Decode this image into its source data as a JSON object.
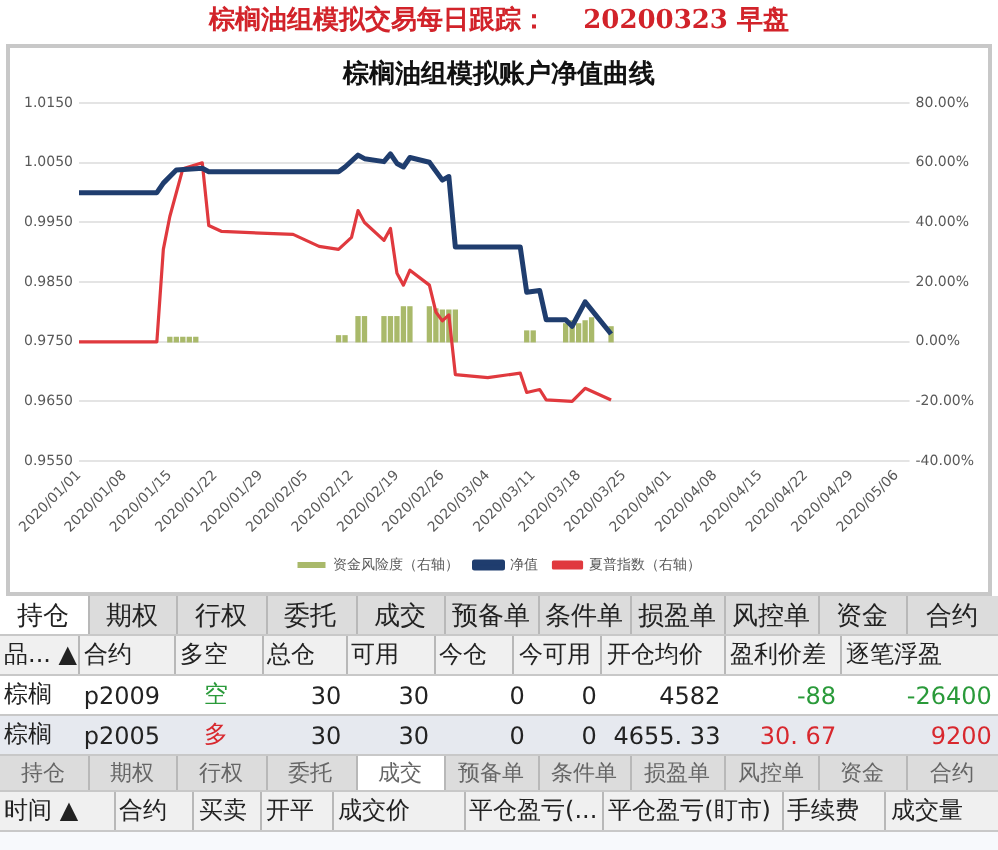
{
  "chart_data": [
    {
      "type": "line",
      "title": "棕榈油组模拟交易每日跟踪：    20200323 早盘",
      "subtitle": "棕榈油组模拟账户净值曲线",
      "xlim": [
        "2020-01-01",
        "2020-05-08"
      ],
      "xticks": [
        {
          "value": "2020-01-01",
          "label": "2020/01/01"
        },
        {
          "value": "2020-01-08",
          "label": "2020/01/08"
        },
        {
          "value": "2020-01-15",
          "label": "2020/01/15"
        },
        {
          "value": "2020-01-22",
          "label": "2020/01/22"
        },
        {
          "value": "2020-01-29",
          "label": "2020/01/29"
        },
        {
          "value": "2020-02-05",
          "label": "2020/02/05"
        },
        {
          "value": "2020-02-12",
          "label": "2020/02/12"
        },
        {
          "value": "2020-02-19",
          "label": "2020/02/19"
        },
        {
          "value": "2020-02-26",
          "label": "2020/02/26"
        },
        {
          "value": "2020-03-04",
          "label": "2020/03/04"
        },
        {
          "value": "2020-03-11",
          "label": "2020/03/11"
        },
        {
          "value": "2020-03-18",
          "label": "2020/03/18"
        },
        {
          "value": "2020-03-25",
          "label": "2020/03/25"
        },
        {
          "value": "2020-04-01",
          "label": "2020/04/01"
        },
        {
          "value": "2020-04-08",
          "label": "2020/04/08"
        },
        {
          "value": "2020-04-15",
          "label": "2020/04/15"
        },
        {
          "value": "2020-04-22",
          "label": "2020/04/22"
        },
        {
          "value": "2020-04-29",
          "label": "2020/04/29"
        },
        {
          "value": "2020-05-06",
          "label": "2020/05/06"
        }
      ],
      "ylim": [
        0.955,
        1.015
      ],
      "yticks": [
        {
          "value": 0.955,
          "label": "0.9550"
        },
        {
          "value": 0.965,
          "label": "0.9650"
        },
        {
          "value": 0.975,
          "label": "0.9750"
        },
        {
          "value": 0.985,
          "label": "0.9850"
        },
        {
          "value": 0.995,
          "label": "0.9950"
        },
        {
          "value": 1.005,
          "label": "1.0050"
        },
        {
          "value": 1.015,
          "label": "1.0150"
        }
      ],
      "y2lim": [
        -40,
        80
      ],
      "y2ticks": [
        {
          "value": -40,
          "label": "-40.00%"
        },
        {
          "value": -20,
          "label": "-20.00%"
        },
        {
          "value": 0,
          "label": "0.00%"
        },
        {
          "value": 20,
          "label": "20.00%"
        },
        {
          "value": 40,
          "label": "40.00%"
        },
        {
          "value": 60,
          "label": "60.00%"
        },
        {
          "value": 80,
          "label": "80.00%"
        }
      ],
      "grid": "y",
      "legend": "bottom",
      "marker": "none",
      "series": [
        {
          "type": "bar",
          "name": "资金风险度（右轴）",
          "axis": "y2",
          "color": "#a9b96a",
          "x": [
            "2020-01-15",
            "2020-01-16",
            "2020-01-17",
            "2020-01-18",
            "2020-01-19",
            "2020-02-10",
            "2020-02-11",
            "2020-02-13",
            "2020-02-14",
            "2020-02-17",
            "2020-02-18",
            "2020-02-19",
            "2020-02-20",
            "2020-02-21",
            "2020-02-24",
            "2020-02-25",
            "2020-02-26",
            "2020-02-27",
            "2020-02-28",
            "2020-03-10",
            "2020-03-11",
            "2020-03-16",
            "2020-03-17",
            "2020-03-18",
            "2020-03-19",
            "2020-03-20",
            "2020-03-23"
          ],
          "values": [
            1.5,
            1.5,
            1.5,
            1.5,
            1.5,
            2,
            2,
            8.4,
            8.4,
            8.4,
            8.4,
            8.4,
            11.7,
            11.7,
            11.7,
            11,
            10.6,
            10.6,
            10.6,
            3.6,
            3.6,
            6,
            7,
            6,
            7,
            8,
            5
          ]
        },
        {
          "type": "line",
          "name": "净值",
          "axis": "y",
          "color": "#1f3d6e",
          "x": [
            "2020-01-01",
            "2020-01-13",
            "2020-01-14",
            "2020-01-16",
            "2020-01-20",
            "2020-01-21",
            "2020-02-10",
            "2020-02-11",
            "2020-02-13",
            "2020-02-14",
            "2020-02-17",
            "2020-02-18",
            "2020-02-19",
            "2020-02-20",
            "2020-02-21",
            "2020-02-24",
            "2020-02-26",
            "2020-02-27",
            "2020-02-28",
            "2020-03-09",
            "2020-03-10",
            "2020-03-12",
            "2020-03-13",
            "2020-03-16",
            "2020-03-17",
            "2020-03-19",
            "2020-03-23"
          ],
          "values": [
            1.0,
            1.0,
            1.0016,
            1.0038,
            1.0041,
            1.0035,
            1.0035,
            1.0043,
            1.0063,
            1.0057,
            1.0052,
            1.0065,
            1.0049,
            1.0043,
            1.0059,
            1.0051,
            1.0021,
            1.0027,
            0.9909,
            0.9909,
            0.9833,
            0.9836,
            0.9787,
            0.9787,
            0.9776,
            0.9817,
            0.9763
          ]
        },
        {
          "type": "line",
          "name": "夏普指数（右轴）",
          "axis": "y2",
          "color": "#e0393e",
          "x": [
            "2020-01-01",
            "2020-01-13",
            "2020-01-14",
            "2020-01-15",
            "2020-01-17",
            "2020-01-20",
            "2020-01-21",
            "2020-01-23",
            "2020-02-03",
            "2020-02-07",
            "2020-02-10",
            "2020-02-12",
            "2020-02-13",
            "2020-02-14",
            "2020-02-17",
            "2020-02-18",
            "2020-02-19",
            "2020-02-20",
            "2020-02-21",
            "2020-02-24",
            "2020-02-25",
            "2020-02-26",
            "2020-02-27",
            "2020-02-28",
            "2020-03-04",
            "2020-03-09",
            "2020-03-10",
            "2020-03-12",
            "2020-03-13",
            "2020-03-17",
            "2020-03-19",
            "2020-03-23"
          ],
          "values": [
            0,
            0,
            31,
            42,
            58,
            60,
            39,
            37,
            36,
            32,
            31,
            35,
            44,
            40,
            34,
            38,
            23,
            19,
            24,
            19,
            10,
            7,
            9,
            -11,
            -12,
            -10.5,
            -17,
            -16,
            -19.5,
            -20,
            -15.6,
            -19.5
          ]
        }
      ]
    },
    {
      "type": "other",
      "annotations": [
        "持仓",
        "期权",
        "行权",
        "委托",
        "成交",
        "预备单",
        "条件单",
        "损盈单",
        "风控单",
        "资金",
        "合约"
      ]
    },
    {
      "type": "other",
      "annotations": [
        "品... ▲",
        "合约",
        "多空",
        "总仓",
        "可用",
        "今仓",
        "今可用",
        "开仓均价",
        "盈利价差",
        "逐笔浮盈"
      ]
    },
    {
      "type": "other",
      "annotations": [
        "棕榈",
        "p2009",
        "空",
        "30",
        "30",
        "0",
        "0",
        "4582",
        "-88",
        "-26400"
      ],
      "colors": [
        null,
        null,
        "#2a9a3a",
        null,
        null,
        null,
        null,
        null,
        "#2a9a3a",
        "#2a9a3a"
      ]
    },
    {
      "type": "other",
      "annotations": [
        "棕榈",
        "p2005",
        "多",
        "30",
        "30",
        "0",
        "0",
        "4655. 33",
        "30. 67",
        "9200"
      ],
      "colors": [
        null,
        null,
        "#d8282e",
        null,
        null,
        null,
        null,
        null,
        "#d8282e",
        "#d8282e"
      ]
    },
    {
      "type": "other",
      "annotations": [
        "持仓",
        "期权",
        "行权",
        "委托",
        "成交",
        "预备单",
        "条件单",
        "损盈单",
        "风控单",
        "资金",
        "合约"
      ]
    },
    {
      "type": "other",
      "annotations": [
        "时间 ▲",
        "合约",
        "买卖",
        "开平",
        "成交价",
        "平仓盈亏(...",
        "平仓盈亏(盯市)",
        "手续费",
        "成交量"
      ]
    }
  ]
}
